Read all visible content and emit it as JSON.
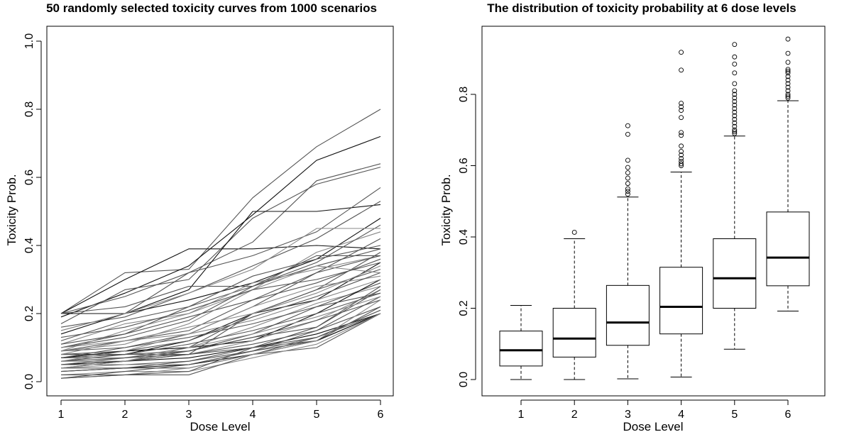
{
  "chart_data": [
    {
      "type": "line",
      "title": "50 randomly selected toxicity curves from 1000 scenarios",
      "xlabel": "Dose Level",
      "ylabel": "Toxicity Prob.",
      "x": [
        1,
        2,
        3,
        4,
        5,
        6
      ],
      "xticks": [
        "1",
        "2",
        "3",
        "4",
        "5",
        "6"
      ],
      "yticks": [
        "0.0",
        "0.2",
        "0.4",
        "0.6",
        "0.8",
        "1.0"
      ],
      "xlim": [
        1,
        6
      ],
      "ylim": [
        0,
        1
      ],
      "colors": {
        "dark": "#111111",
        "mid": "#555555",
        "light": "#888888"
      },
      "series": [
        {
          "values": [
            0.2,
            0.32,
            0.33,
            0.54,
            0.69,
            0.8
          ],
          "shade": "mid"
        },
        {
          "values": [
            0.2,
            0.3,
            0.39,
            0.39,
            0.4,
            0.39
          ],
          "shade": "dark"
        },
        {
          "values": [
            0.19,
            0.26,
            0.34,
            0.49,
            0.65,
            0.72
          ],
          "shade": "dark"
        },
        {
          "values": [
            0.2,
            0.25,
            0.32,
            0.41,
            0.59,
            0.64
          ],
          "shade": "mid"
        },
        {
          "values": [
            0.17,
            0.27,
            0.3,
            0.48,
            0.58,
            0.63
          ],
          "shade": "mid"
        },
        {
          "values": [
            0.2,
            0.2,
            0.27,
            0.5,
            0.5,
            0.52
          ],
          "shade": "dark"
        },
        {
          "values": [
            0.15,
            0.2,
            0.32,
            0.37,
            0.44,
            0.57
          ],
          "shade": "mid"
        },
        {
          "values": [
            0.16,
            0.19,
            0.26,
            0.34,
            0.42,
            0.53
          ],
          "shade": "mid"
        },
        {
          "values": [
            0.14,
            0.2,
            0.24,
            0.29,
            0.36,
            0.48
          ],
          "shade": "dark"
        },
        {
          "values": [
            0.12,
            0.18,
            0.22,
            0.28,
            0.34,
            0.39
          ],
          "shade": "mid"
        },
        {
          "values": [
            0.11,
            0.17,
            0.2,
            0.27,
            0.38,
            0.44
          ],
          "shade": "light"
        },
        {
          "values": [
            0.1,
            0.14,
            0.22,
            0.31,
            0.36,
            0.4
          ],
          "shade": "mid"
        },
        {
          "values": [
            0.1,
            0.13,
            0.18,
            0.28,
            0.35,
            0.46
          ],
          "shade": "mid"
        },
        {
          "values": [
            0.09,
            0.15,
            0.2,
            0.29,
            0.33,
            0.37
          ],
          "shade": "light"
        },
        {
          "values": [
            0.09,
            0.1,
            0.14,
            0.22,
            0.32,
            0.42
          ],
          "shade": "mid"
        },
        {
          "values": [
            0.09,
            0.12,
            0.15,
            0.24,
            0.29,
            0.36
          ],
          "shade": "mid"
        },
        {
          "values": [
            0.08,
            0.08,
            0.12,
            0.2,
            0.24,
            0.35
          ],
          "shade": "dark"
        },
        {
          "values": [
            0.08,
            0.09,
            0.1,
            0.2,
            0.27,
            0.33
          ],
          "shade": "mid"
        },
        {
          "values": [
            0.08,
            0.08,
            0.08,
            0.2,
            0.27,
            0.38
          ],
          "shade": "mid"
        },
        {
          "values": [
            0.08,
            0.12,
            0.14,
            0.22,
            0.28,
            0.31
          ],
          "shade": "light"
        },
        {
          "values": [
            0.07,
            0.09,
            0.12,
            0.19,
            0.25,
            0.32
          ],
          "shade": "mid"
        },
        {
          "values": [
            0.07,
            0.07,
            0.1,
            0.16,
            0.23,
            0.28
          ],
          "shade": "light"
        },
        {
          "values": [
            0.07,
            0.08,
            0.09,
            0.14,
            0.22,
            0.29
          ],
          "shade": "mid"
        },
        {
          "values": [
            0.07,
            0.09,
            0.1,
            0.12,
            0.2,
            0.3
          ],
          "shade": "dark"
        },
        {
          "values": [
            0.06,
            0.08,
            0.11,
            0.15,
            0.2,
            0.26
          ],
          "shade": "mid"
        },
        {
          "values": [
            0.06,
            0.06,
            0.08,
            0.12,
            0.18,
            0.27
          ],
          "shade": "light"
        },
        {
          "values": [
            0.06,
            0.07,
            0.08,
            0.11,
            0.15,
            0.22
          ],
          "shade": "mid"
        },
        {
          "values": [
            0.05,
            0.06,
            0.09,
            0.13,
            0.18,
            0.24
          ],
          "shade": "mid"
        },
        {
          "values": [
            0.05,
            0.06,
            0.07,
            0.1,
            0.14,
            0.2
          ],
          "shade": "dark"
        },
        {
          "values": [
            0.05,
            0.05,
            0.06,
            0.1,
            0.12,
            0.2
          ],
          "shade": "mid"
        },
        {
          "values": [
            0.04,
            0.05,
            0.05,
            0.09,
            0.13,
            0.21
          ],
          "shade": "light"
        },
        {
          "values": [
            0.04,
            0.06,
            0.08,
            0.1,
            0.13,
            0.2
          ],
          "shade": "mid"
        },
        {
          "values": [
            0.04,
            0.04,
            0.06,
            0.09,
            0.12,
            0.22
          ],
          "shade": "mid"
        },
        {
          "values": [
            0.03,
            0.04,
            0.05,
            0.08,
            0.12,
            0.2
          ],
          "shade": "dark"
        },
        {
          "values": [
            0.03,
            0.04,
            0.04,
            0.08,
            0.1,
            0.2
          ],
          "shade": "mid"
        },
        {
          "values": [
            0.02,
            0.03,
            0.03,
            0.07,
            0.11,
            0.2
          ],
          "shade": "light"
        },
        {
          "values": [
            0.02,
            0.02,
            0.02,
            0.08,
            0.13,
            0.21
          ],
          "shade": "mid"
        },
        {
          "values": [
            0.01,
            0.03,
            0.05,
            0.09,
            0.15,
            0.25
          ],
          "shade": "mid"
        },
        {
          "values": [
            0.01,
            0.02,
            0.04,
            0.08,
            0.12,
            0.24
          ],
          "shade": "light"
        },
        {
          "values": [
            0.01,
            0.02,
            0.03,
            0.1,
            0.16,
            0.27
          ],
          "shade": "mid"
        },
        {
          "values": [
            0.2,
            0.22,
            0.28,
            0.28,
            0.37,
            0.37
          ],
          "shade": "mid"
        },
        {
          "values": [
            0.15,
            0.2,
            0.26,
            0.33,
            0.45,
            0.45
          ],
          "shade": "light"
        },
        {
          "values": [
            0.11,
            0.14,
            0.19,
            0.24,
            0.32,
            0.37
          ],
          "shade": "mid"
        },
        {
          "values": [
            0.09,
            0.11,
            0.17,
            0.27,
            0.34,
            0.32
          ],
          "shade": "light"
        },
        {
          "values": [
            0.07,
            0.1,
            0.13,
            0.17,
            0.22,
            0.26
          ],
          "shade": "mid"
        },
        {
          "values": [
            0.06,
            0.09,
            0.14,
            0.18,
            0.24,
            0.3
          ],
          "shade": "light"
        },
        {
          "values": [
            0.05,
            0.07,
            0.09,
            0.13,
            0.16,
            0.28
          ],
          "shade": "mid"
        },
        {
          "values": [
            0.04,
            0.06,
            0.1,
            0.14,
            0.19,
            0.25
          ],
          "shade": "light"
        },
        {
          "values": [
            0.13,
            0.16,
            0.21,
            0.27,
            0.3,
            0.35
          ],
          "shade": "mid"
        },
        {
          "values": [
            0.1,
            0.12,
            0.16,
            0.2,
            0.26,
            0.34
          ],
          "shade": "light"
        }
      ]
    },
    {
      "type": "box",
      "title": "The distribution of toxicity probability at 6 dose levels",
      "xlabel": "Dose Level",
      "ylabel": "Toxicity Prob.",
      "categories": [
        "1",
        "2",
        "3",
        "4",
        "5",
        "6"
      ],
      "yticks": [
        "0.0",
        "0.2",
        "0.4",
        "0.6",
        "0.8"
      ],
      "tick_values": [
        0,
        0.2,
        0.4,
        0.6,
        0.8
      ],
      "ylim": [
        -0.05,
        0.99
      ],
      "boxes": [
        {
          "min": 0.0,
          "q1": 0.038,
          "median": 0.082,
          "q3": 0.136,
          "max": 0.208,
          "outliers": []
        },
        {
          "min": 0.0,
          "q1": 0.063,
          "median": 0.115,
          "q3": 0.2,
          "max": 0.395,
          "outliers": [
            0.413
          ]
        },
        {
          "min": 0.002,
          "q1": 0.096,
          "median": 0.16,
          "q3": 0.264,
          "max": 0.512,
          "outliers": [
            0.52,
            0.528,
            0.535,
            0.55,
            0.565,
            0.58,
            0.595,
            0.615,
            0.688,
            0.712
          ]
        },
        {
          "min": 0.007,
          "q1": 0.128,
          "median": 0.204,
          "q3": 0.315,
          "max": 0.582,
          "outliers": [
            0.6,
            0.605,
            0.612,
            0.62,
            0.63,
            0.64,
            0.655,
            0.685,
            0.693,
            0.735,
            0.755,
            0.765,
            0.775,
            0.868,
            0.918
          ]
        },
        {
          "min": 0.085,
          "q1": 0.2,
          "median": 0.284,
          "q3": 0.395,
          "max": 0.683,
          "outliers": [
            0.69,
            0.695,
            0.7,
            0.71,
            0.72,
            0.73,
            0.74,
            0.75,
            0.76,
            0.77,
            0.78,
            0.79,
            0.8,
            0.81,
            0.83,
            0.86,
            0.885,
            0.905,
            0.94
          ]
        },
        {
          "min": 0.192,
          "q1": 0.263,
          "median": 0.342,
          "q3": 0.47,
          "max": 0.782,
          "outliers": [
            0.79,
            0.795,
            0.8,
            0.81,
            0.82,
            0.83,
            0.84,
            0.85,
            0.86,
            0.865,
            0.87,
            0.89,
            0.915,
            0.955
          ]
        }
      ]
    }
  ]
}
